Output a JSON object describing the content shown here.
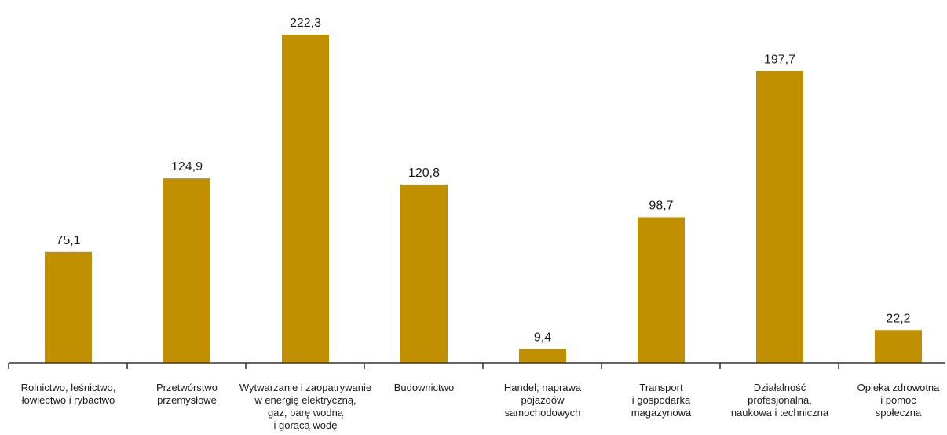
{
  "chart_data": {
    "type": "bar",
    "title": "",
    "xlabel": "",
    "ylabel": "",
    "ylim": [
      0,
      230
    ],
    "grid": false,
    "bar_color": "#C09000",
    "axis_color": "#333333",
    "categories": [
      [
        "Rolnictwo, leśnictwo,",
        "łowiectwo i rybactwo"
      ],
      [
        "Przetwórstwo",
        "przemysłowe"
      ],
      [
        "Wytwarzanie i zaopatrywanie",
        "w energię elektryczną,",
        "gaz, parę wodną",
        "i gorącą wodę"
      ],
      [
        "Budownictwo"
      ],
      [
        "Handel; naprawa",
        "pojazdów",
        "samochodowych"
      ],
      [
        "Transport",
        "i gospodarka",
        "magazynowa"
      ],
      [
        "Działalność",
        "profesjonalna,",
        "naukowa i techniczna"
      ],
      [
        "Opieka zdrowotna",
        "i pomoc",
        "społeczna"
      ]
    ],
    "values": [
      75.1,
      124.9,
      222.3,
      120.8,
      9.4,
      98.7,
      197.7,
      22.2
    ],
    "value_labels": [
      "75,1",
      "124,9",
      "222,3",
      "120,8",
      "9,4",
      "98,7",
      "197,7",
      "22,2"
    ]
  }
}
